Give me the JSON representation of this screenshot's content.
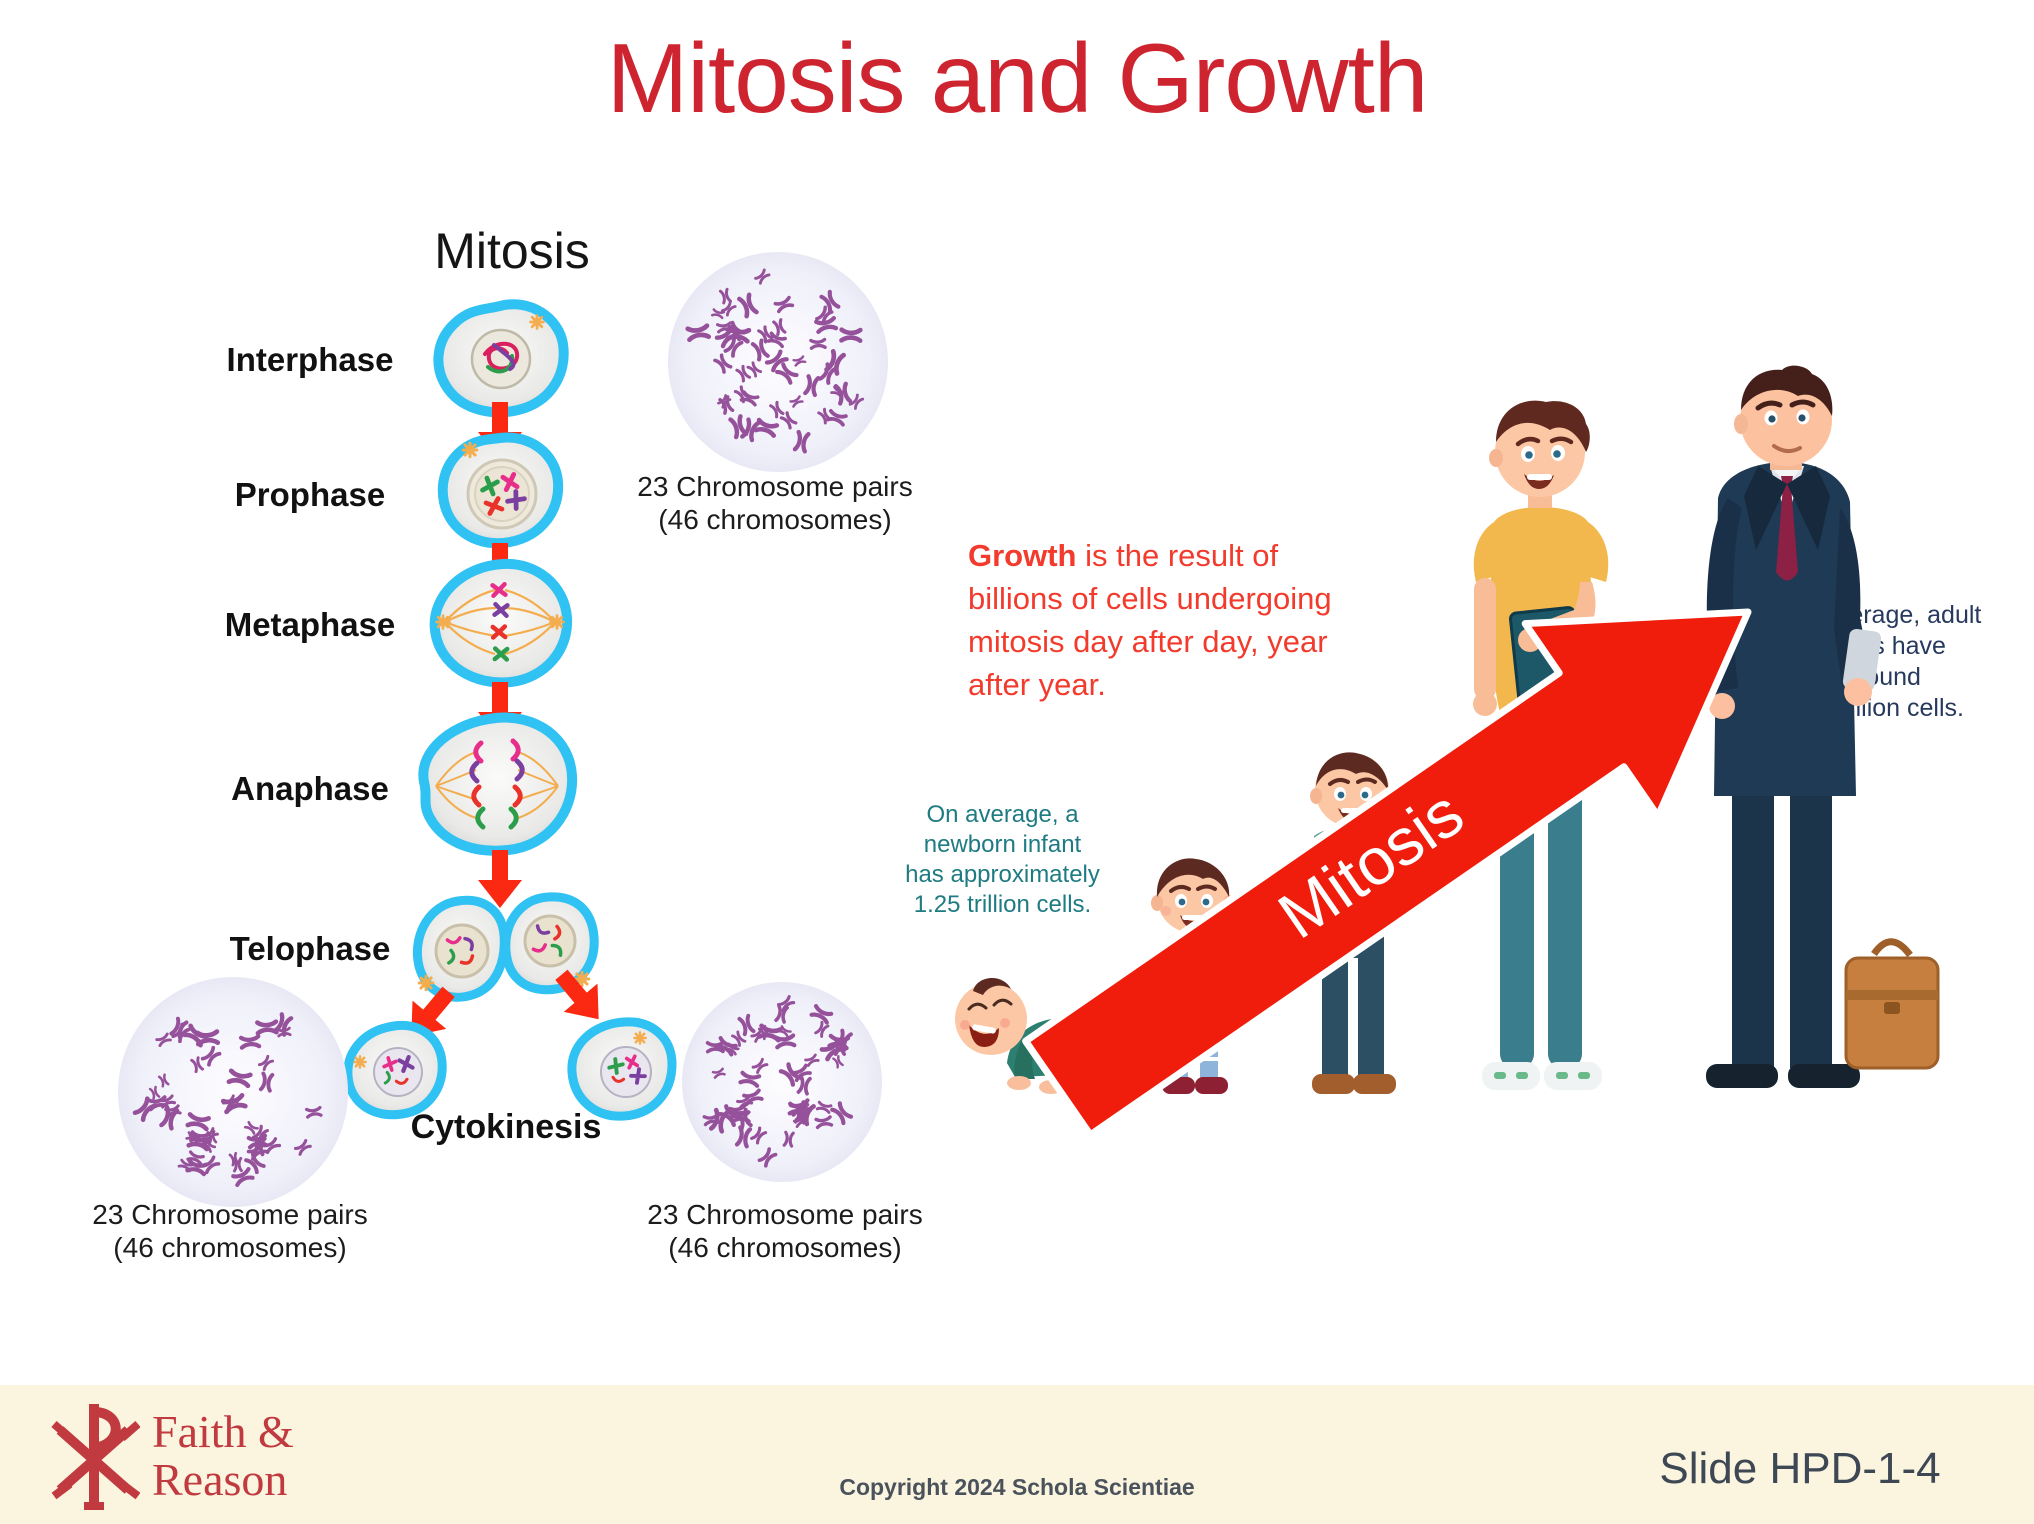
{
  "title": "Mitosis and Growth",
  "diagram": {
    "heading": "Mitosis",
    "stages": [
      "Interphase",
      "Prophase",
      "Metaphase",
      "Anaphase",
      "Telophase"
    ],
    "cytokinesis_label": "Cytokinesis",
    "karyotype_caption": [
      "23 Chromosome pairs",
      "(46 chromosomes)"
    ]
  },
  "growth_statement": {
    "lead": "Growth",
    "rest": " is the result of billions of cells undergoing mitosis day after day, year after year."
  },
  "notes": {
    "newborn": [
      "On average, a",
      "newborn infant",
      "has approximately",
      "1.25 trillion cells."
    ],
    "adult": [
      "On average, adult",
      "males have around",
      "36 trillion cells."
    ]
  },
  "growth_arrow_label": "Mitosis",
  "footer": {
    "brand_line1": "Faith &",
    "brand_line2": "Reason",
    "copyright": "Copyright 2024 Schola Scientiae",
    "slide_number": "Slide HPD-1-4"
  },
  "colors": {
    "title_red": "#ce2430",
    "body_red": "#f23b2d",
    "arrow_red": "#f01c0c",
    "diagram_arrow_red": "#fb2812",
    "membrane_blue": "#2fc2f3",
    "spindle_orange": "#f3ad4e",
    "newborn_teal": "#1e7b82",
    "adult_navy": "#27395d",
    "footer_cream": "#fbf4de",
    "brand_red": "#c13a40",
    "footer_text": "#4a525c",
    "karyotype_purple": "#96519b"
  }
}
